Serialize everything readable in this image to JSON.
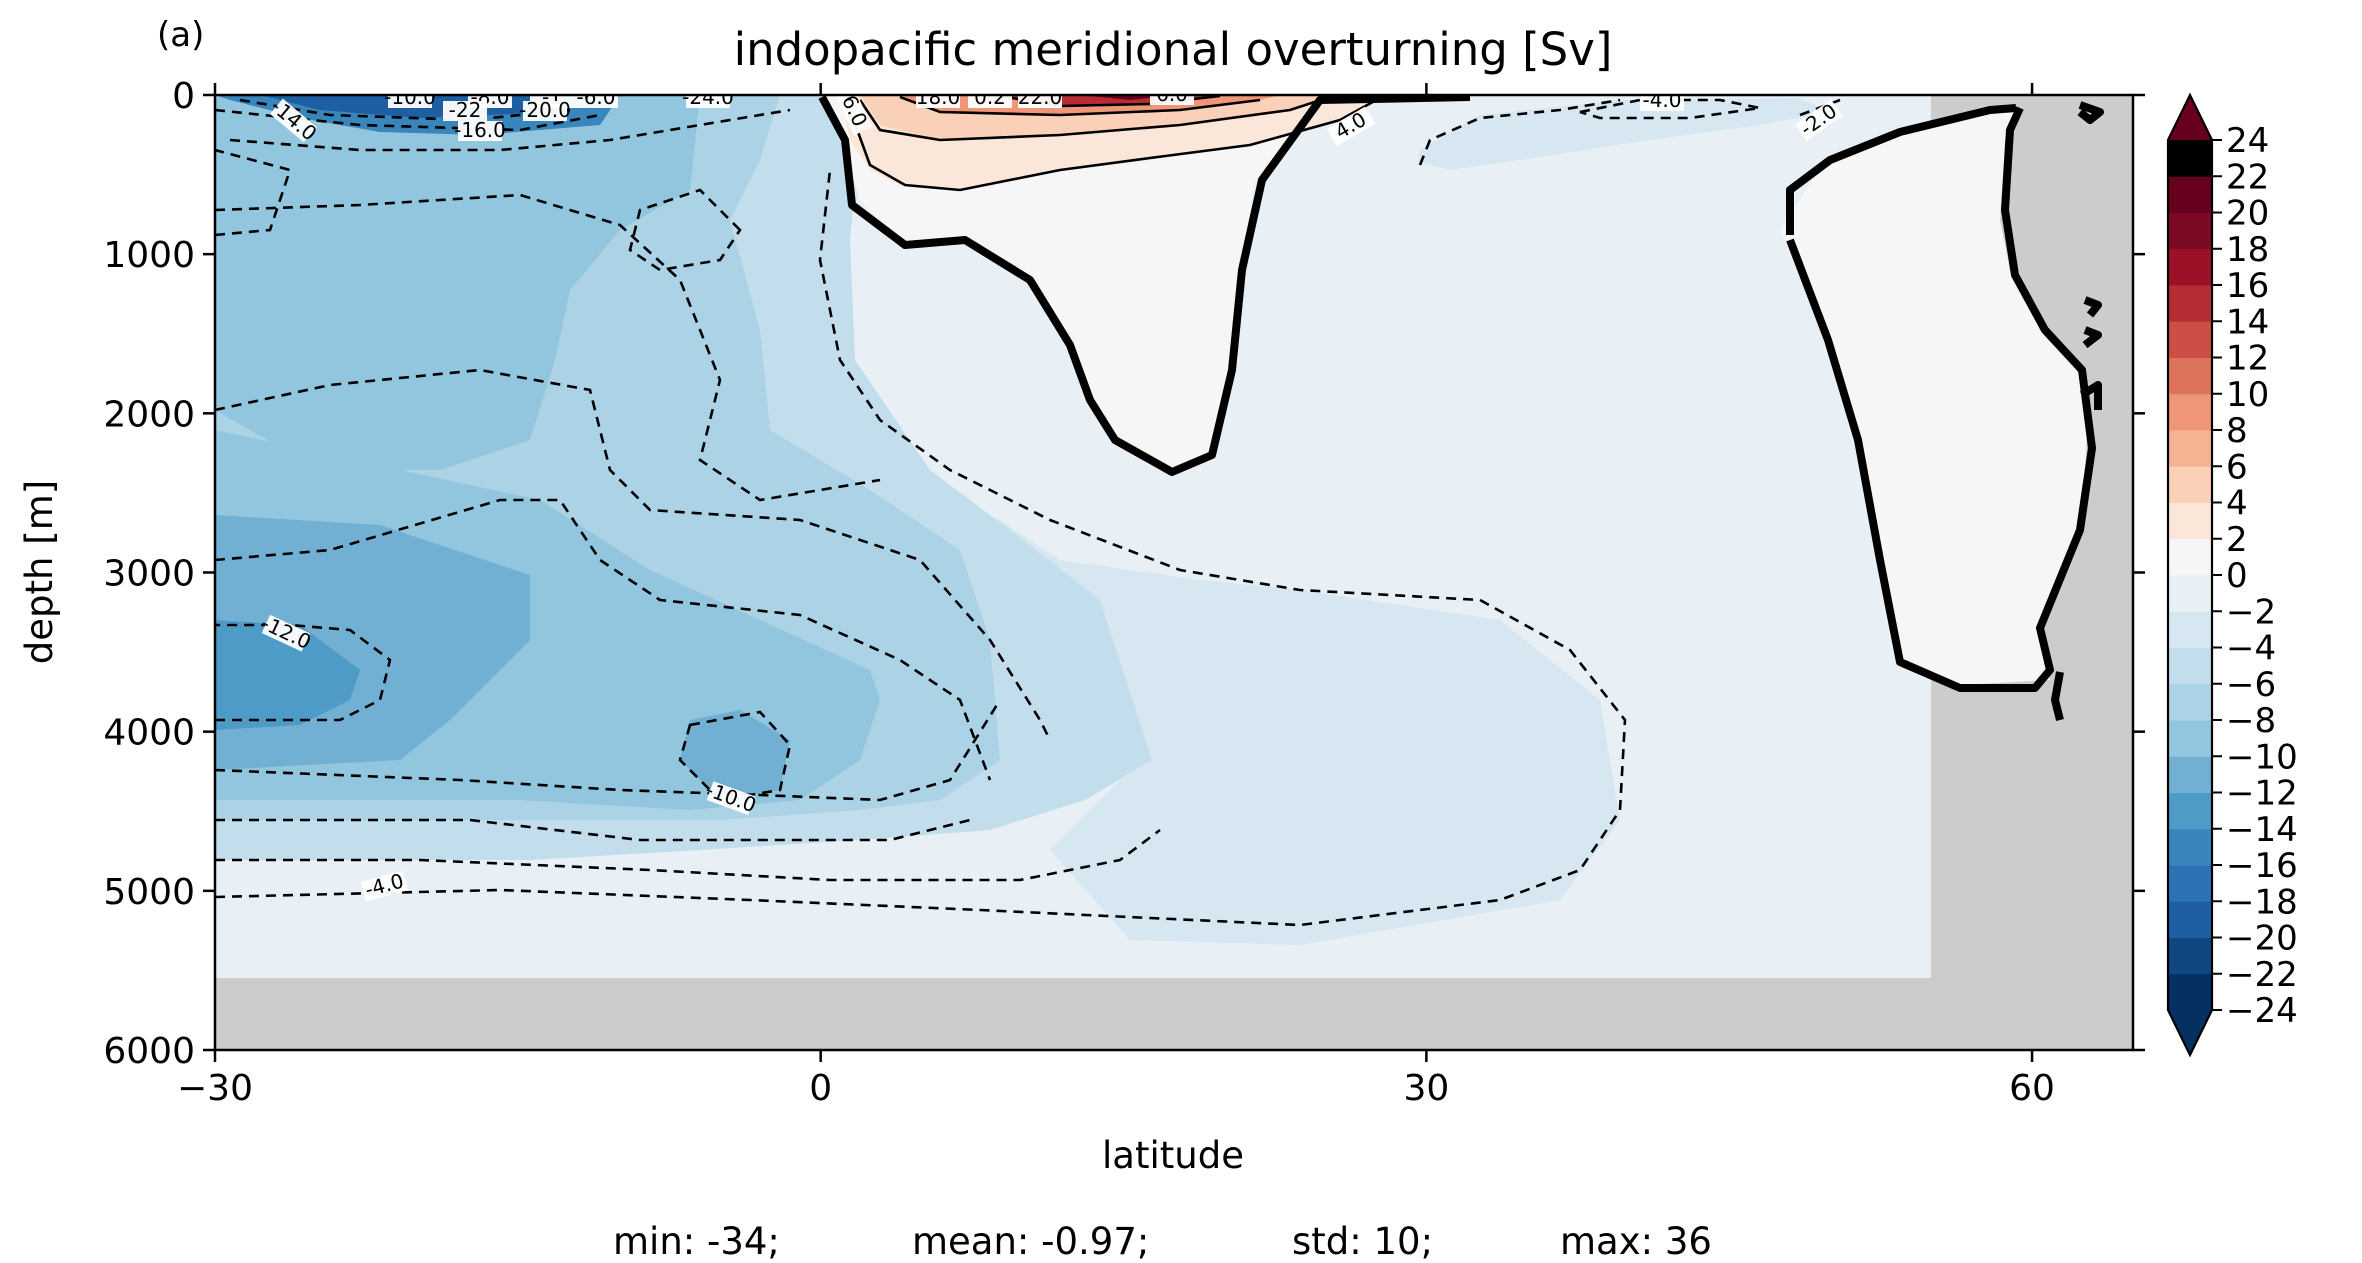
{
  "panel_label": "(a)",
  "stats_line": {
    "min": "min: -34;",
    "mean": "mean: -0.97;",
    "std": "std: 10;",
    "max": "max: 36"
  },
  "chart_data": {
    "type": "contour",
    "title": "indopacific meridional overturning [Sv]",
    "xlabel": "latitude",
    "ylabel": "depth [m]",
    "xlim": [
      -30,
      65
    ],
    "ylim": [
      6000,
      0
    ],
    "y_inverted": true,
    "xticks": [
      -30,
      0,
      30,
      60
    ],
    "xtick_labels": [
      "−30",
      "0",
      "30",
      "60"
    ],
    "yticks": [
      0,
      1000,
      2000,
      3000,
      4000,
      5000,
      6000
    ],
    "ytick_labels": [
      "0",
      "1000",
      "2000",
      "3000",
      "4000",
      "5000",
      "6000"
    ],
    "colormap": "RdBu_r",
    "colorbar": {
      "levels": [
        -24,
        -22,
        -20,
        -18,
        -16,
        -14,
        -12,
        -10,
        -8,
        -6,
        -4,
        -2,
        0,
        2,
        4,
        6,
        8,
        10,
        12,
        14,
        16,
        18,
        20,
        22,
        24
      ],
      "tick_labels": [
        "−24",
        "−22",
        "−20",
        "−18",
        "−16",
        "−14",
        "−12",
        "−10",
        "−8",
        "−6",
        "−4",
        "−2",
        "0",
        "2",
        "4",
        "6",
        "8",
        "10",
        "12",
        "14",
        "16",
        "18",
        "20",
        "22",
        "24"
      ],
      "colors": [
        "#053061",
        "#114781",
        "#1d5fa2",
        "#2b73b3",
        "#3886bc",
        "#4f9bc7",
        "#71b0d3",
        "#92c5de",
        "#abd2e5",
        "#c2ddec",
        "#d6e7f1",
        "#e8f0f5",
        "#f7f6f6",
        "#fbe6da",
        "#fbd0b9",
        "#f6b394",
        "#ee9677",
        "#de735c",
        "#cb4f44",
        "#b72c32",
        "#9c1127",
        "#7d0a25",
        "#67001f"
      ],
      "extend": "both"
    },
    "land_color": "#cccccc",
    "contour_labels": [
      "-10.0",
      "-8.0",
      "-1",
      "-6.0",
      "-24.0",
      "-22",
      "-20.0",
      "-16.0",
      "-14.0",
      "6.0",
      "18.0",
      "0.2",
      "22.0",
      "6.0",
      "4.0",
      "-4.0",
      "-2.0",
      "-12.0",
      "-10.0",
      "-4.0"
    ],
    "zero_contour_style": "thick solid",
    "negative_contour_style": "dashed",
    "positive_contour_style": "solid"
  }
}
